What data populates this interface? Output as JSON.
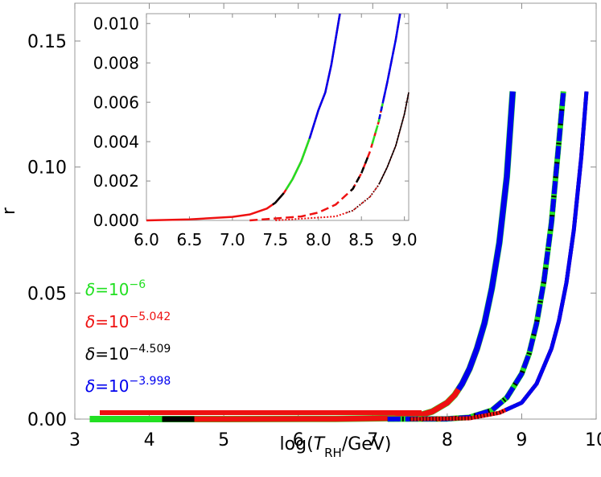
{
  "chart_data": [
    {
      "type": "line",
      "panel": "main",
      "xlabel": {
        "prefix": "log(",
        "italic": "T",
        "sub": "RH",
        "suffix": "/GeV)"
      },
      "ylabel": "r",
      "xlim": [
        3,
        10
      ],
      "ylim": [
        0,
        0.165
      ],
      "xticks": [
        3,
        4,
        5,
        6,
        7,
        8,
        9,
        10
      ],
      "xtick_labels": [
        "3",
        "4",
        "5",
        "6",
        "7",
        "8",
        "9",
        "10"
      ],
      "yticks": [
        0,
        0.05,
        0.1,
        0.15
      ],
      "ytick_labels": [
        "0.00",
        "0.05",
        "0.10",
        "0.15"
      ],
      "grid": false,
      "legend_position": "left, lower-middle",
      "legend": [
        {
          "prefix": "δ=10",
          "exp": "−6",
          "color": "#22e022"
        },
        {
          "prefix": "δ=10",
          "exp": "−5.042",
          "color": "#ee1111"
        },
        {
          "prefix": "δ=10",
          "exp": "−4.509",
          "color": "#000000"
        },
        {
          "prefix": "δ=10",
          "exp": "−3.998",
          "color": "#0000ee"
        }
      ],
      "series": [
        {
          "curve": 1,
          "x": [
            3.2,
            5.0,
            6.5,
            7.3,
            7.6,
            7.8,
            8.0,
            8.1,
            8.2,
            8.3,
            8.4,
            8.5,
            8.6,
            8.7,
            8.8,
            8.88
          ],
          "y": [
            0.0,
            0.0,
            0.0001,
            0.0004,
            0.0013,
            0.003,
            0.0065,
            0.0095,
            0.014,
            0.02,
            0.028,
            0.038,
            0.052,
            0.07,
            0.096,
            0.13
          ]
        },
        {
          "curve": 2,
          "x": [
            7.2,
            8.0,
            8.3,
            8.6,
            8.8,
            9.0,
            9.1,
            9.2,
            9.3,
            9.4,
            9.5,
            9.56
          ],
          "y": [
            0.0,
            0.0001,
            0.0007,
            0.0035,
            0.0085,
            0.018,
            0.026,
            0.038,
            0.055,
            0.078,
            0.11,
            0.13
          ]
        },
        {
          "curve": 3,
          "x": [
            7.5,
            8.3,
            8.7,
            9.0,
            9.2,
            9.4,
            9.5,
            9.6,
            9.7,
            9.8,
            9.87
          ],
          "y": [
            0.0,
            0.0003,
            0.0025,
            0.0065,
            0.014,
            0.028,
            0.039,
            0.054,
            0.075,
            0.104,
            0.13
          ]
        }
      ]
    },
    {
      "type": "line",
      "panel": "inset",
      "xlim": [
        6,
        9.05
      ],
      "ylim": [
        0,
        0.0105
      ],
      "xticks": [
        6.0,
        6.5,
        7.0,
        7.5,
        8.0,
        8.5,
        9.0
      ],
      "xtick_labels": [
        "6.0",
        "6.5",
        "7.0",
        "7.5",
        "8.0",
        "8.5",
        "9.0"
      ],
      "yticks": [
        0,
        0.002,
        0.004,
        0.006,
        0.008,
        0.01
      ],
      "ytick_labels": [
        "0.000",
        "0.002",
        "0.004",
        "0.006",
        "0.008",
        "0.010"
      ],
      "series": [
        {
          "curve": 1,
          "x": [
            6.0,
            6.5,
            7.0,
            7.2,
            7.4,
            7.5,
            7.6,
            7.7,
            7.8,
            7.9,
            8.0,
            8.08,
            8.15,
            8.25
          ],
          "y": [
            0.0,
            5e-05,
            0.00018,
            0.0003,
            0.0006,
            0.0009,
            0.0014,
            0.0021,
            0.003,
            0.0042,
            0.0056,
            0.0065,
            0.0079,
            0.0105
          ]
        },
        {
          "curve": 2,
          "x": [
            7.2,
            7.8,
            8.0,
            8.2,
            8.4,
            8.5,
            8.6,
            8.7,
            8.8,
            8.9,
            8.95
          ],
          "y": [
            0.0,
            0.0002,
            0.0004,
            0.0008,
            0.0016,
            0.0024,
            0.0035,
            0.005,
            0.007,
            0.0092,
            0.0105
          ]
        },
        {
          "curve": 3,
          "x": [
            7.5,
            8.2,
            8.4,
            8.6,
            8.7,
            8.8,
            8.9,
            9.0,
            9.05
          ],
          "y": [
            0.0,
            0.0002,
            0.0005,
            0.0012,
            0.0018,
            0.0027,
            0.0038,
            0.0054,
            0.0065
          ]
        }
      ]
    }
  ]
}
